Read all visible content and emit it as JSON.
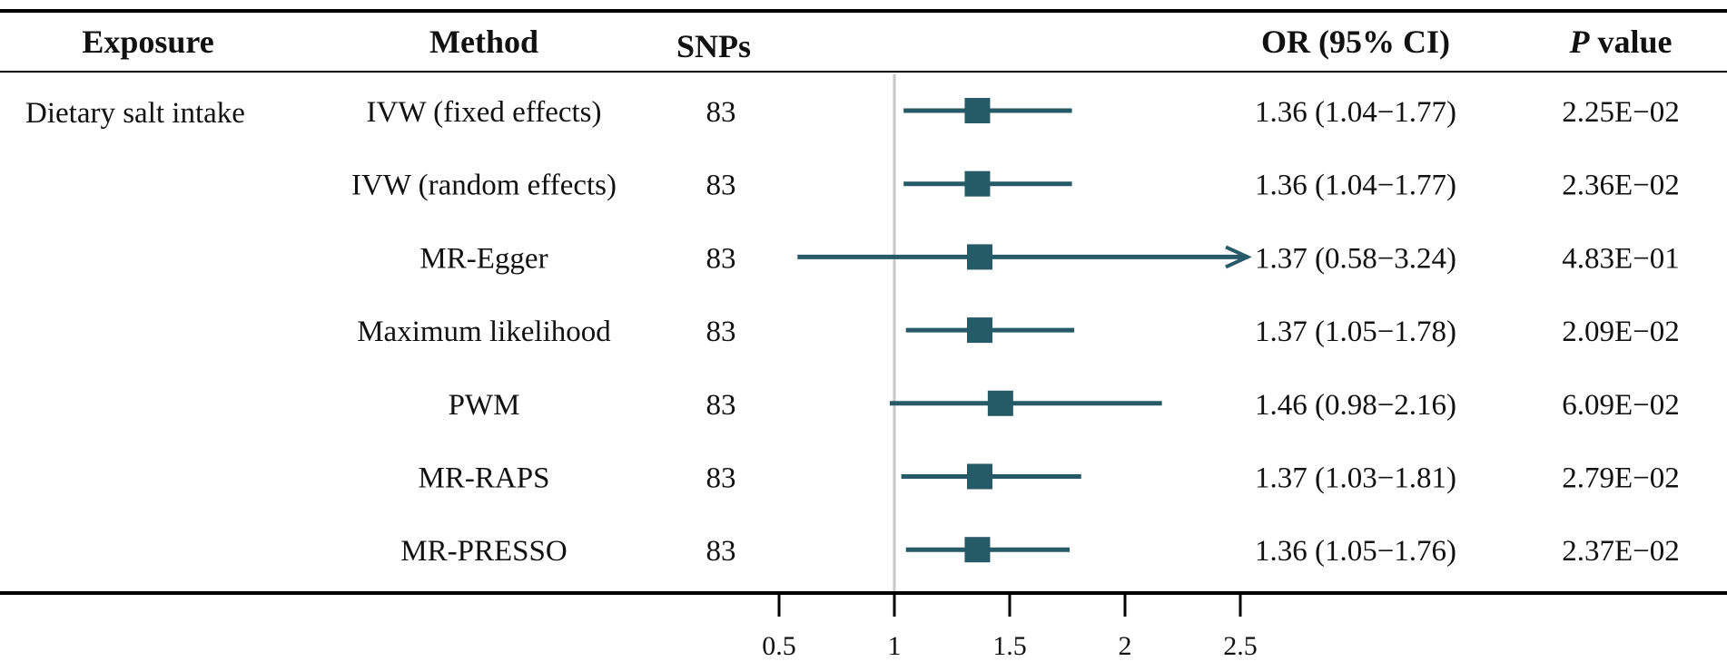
{
  "colors": {
    "marker": "#255a66",
    "ref_line": "#c8c8c8",
    "rule": "#000000"
  },
  "headers": {
    "exposure": "Exposure",
    "method": "Method",
    "snps": "SNPs",
    "or_ci": "OR (95% CI)",
    "p_italic": "P",
    "p_rest": " value"
  },
  "exposure_label": "Dietary salt intake",
  "chart_data": {
    "type": "forest",
    "title": "",
    "xlabel": "",
    "xlim": [
      0.5,
      2.5
    ],
    "xticks": [
      0.5,
      1,
      1.5,
      2,
      2.5
    ],
    "xtick_labels": [
      "0.5",
      "1",
      "1.5",
      "2",
      "2.5"
    ],
    "reference_value": 1,
    "rows": [
      {
        "method": "IVW (fixed effects)",
        "snps": "83",
        "or": 1.36,
        "lower": 1.04,
        "upper": 1.77,
        "or_ci_text": "1.36 (1.04−1.77)",
        "p_text": "2.25E−02",
        "arrow": false
      },
      {
        "method": "IVW (random effects)",
        "snps": "83",
        "or": 1.36,
        "lower": 1.04,
        "upper": 1.77,
        "or_ci_text": "1.36 (1.04−1.77)",
        "p_text": "2.36E−02",
        "arrow": false
      },
      {
        "method": "MR-Egger",
        "snps": "83",
        "or": 1.37,
        "lower": 0.58,
        "upper": 3.24,
        "or_ci_text": "1.37 (0.58−3.24)",
        "p_text": "4.83E−01",
        "arrow": true
      },
      {
        "method": "Maximum likelihood",
        "snps": "83",
        "or": 1.37,
        "lower": 1.05,
        "upper": 1.78,
        "or_ci_text": "1.37 (1.05−1.78)",
        "p_text": "2.09E−02",
        "arrow": false
      },
      {
        "method": "PWM",
        "snps": "83",
        "or": 1.46,
        "lower": 0.98,
        "upper": 2.16,
        "or_ci_text": "1.46 (0.98−2.16)",
        "p_text": "6.09E−02",
        "arrow": false
      },
      {
        "method": "MR-RAPS",
        "snps": "83",
        "or": 1.37,
        "lower": 1.03,
        "upper": 1.81,
        "or_ci_text": "1.37 (1.03−1.81)",
        "p_text": "2.79E−02",
        "arrow": false
      },
      {
        "method": "MR-PRESSO",
        "snps": "83",
        "or": 1.36,
        "lower": 1.05,
        "upper": 1.76,
        "or_ci_text": "1.36 (1.05−1.76)",
        "p_text": "2.37E−02",
        "arrow": false
      }
    ]
  }
}
